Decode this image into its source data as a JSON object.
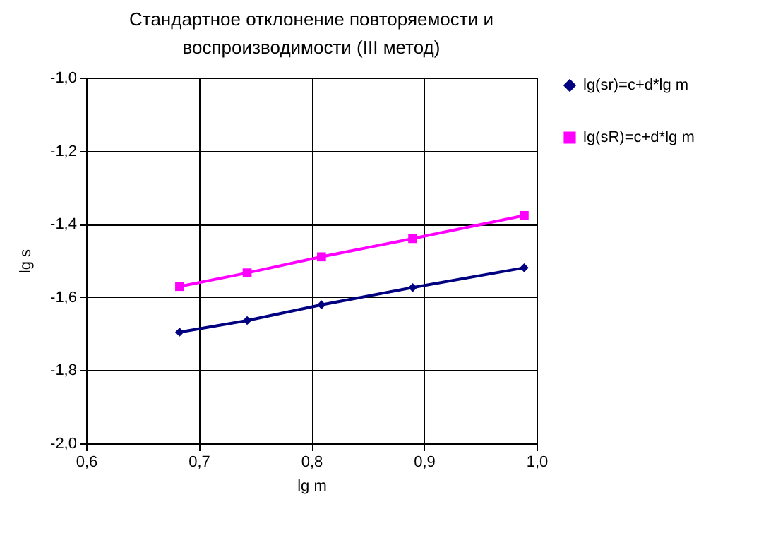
{
  "chart_data": {
    "type": "line",
    "title": "Стандартное отклонение повторяемости и\nвоспроизводимости (III метод)",
    "xlabel": "lg m",
    "ylabel": "lg s",
    "x": [
      0.683,
      0.743,
      0.809,
      0.89,
      0.989
    ],
    "series": [
      {
        "name": "lg(sr)=c+d*lg m",
        "color": "#000080",
        "marker": "diamond",
        "values": [
          -1.696,
          -1.664,
          -1.621,
          -1.574,
          -1.52
        ]
      },
      {
        "name": "lg(sR)=c+d*lg m",
        "color": "#ff00ff",
        "marker": "square",
        "values": [
          -1.571,
          -1.534,
          -1.49,
          -1.44,
          -1.377
        ]
      }
    ],
    "xlim": [
      0.6,
      1.0
    ],
    "ylim": [
      -2.0,
      -1.0
    ],
    "xticks": [
      {
        "value": 0.6,
        "label": "0,6"
      },
      {
        "value": 0.7,
        "label": "0,7"
      },
      {
        "value": 0.8,
        "label": "0,8"
      },
      {
        "value": 0.9,
        "label": "0,9"
      },
      {
        "value": 1.0,
        "label": "1,0"
      }
    ],
    "yticks": [
      {
        "value": -2.0,
        "label": "-2,0"
      },
      {
        "value": -1.8,
        "label": "-1,8"
      },
      {
        "value": -1.6,
        "label": "-1,6"
      },
      {
        "value": -1.4,
        "label": "-1,4"
      },
      {
        "value": -1.2,
        "label": "-1,2"
      },
      {
        "value": -1.0,
        "label": "-1,0"
      }
    ],
    "grid": true,
    "legend": "top right",
    "line_style": "solid"
  }
}
